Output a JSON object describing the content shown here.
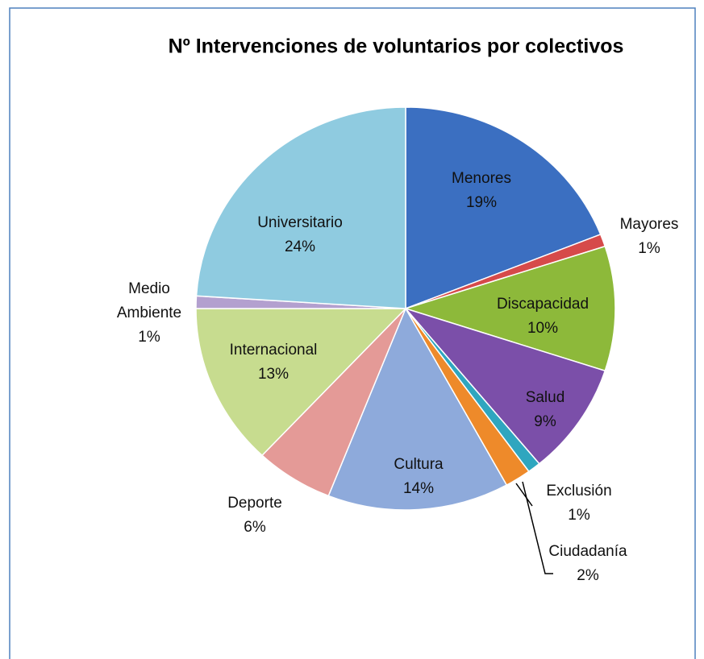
{
  "chart_data": {
    "type": "pie",
    "title": "Nº Intervenciones de voluntarios por colectivos",
    "categories": [
      "Menores",
      "Mayores",
      "Discapacidad",
      "Salud",
      "Exclusión",
      "Ciudadanía",
      "Cultura",
      "Deporte",
      "Internacional",
      "Medio Ambiente",
      "Universitario"
    ],
    "values": [
      19,
      1,
      10,
      9,
      1,
      2,
      14,
      6,
      13,
      1,
      24
    ],
    "value_labels": [
      "19%",
      "1%",
      "10%",
      "9%",
      "1%",
      "2%",
      "14%",
      "6%",
      "13%",
      "1%",
      "24%"
    ],
    "colors": [
      "#3b6fc1",
      "#d64a4a",
      "#8db93a",
      "#7b4fa9",
      "#2fa6bf",
      "#ee8a2a",
      "#8eaadb",
      "#e49a97",
      "#c7dc8f",
      "#b3a0cf",
      "#8fcbe0"
    ]
  }
}
